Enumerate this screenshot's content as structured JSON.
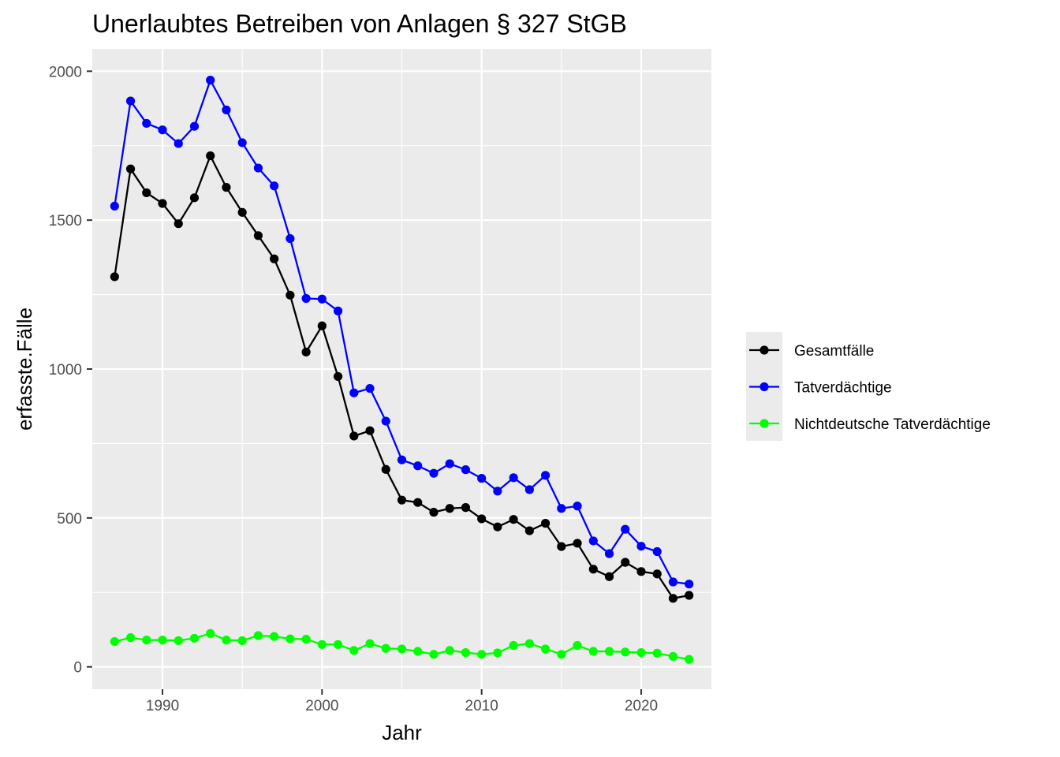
{
  "chart_data": {
    "type": "line",
    "title": "Unerlaubtes Betreiben von Anlagen § 327 StGB",
    "xlabel": "Jahr",
    "ylabel": "erfasste.Fälle",
    "xlim": [
      1985.6,
      2024.4
    ],
    "ylim": [
      -75,
      2075
    ],
    "xticks": [
      1990,
      2000,
      2010,
      2020
    ],
    "yticks": [
      0,
      500,
      1000,
      1500,
      2000
    ],
    "grid": true,
    "legend_position": "right",
    "x": [
      1987,
      1988,
      1989,
      1990,
      1991,
      1992,
      1993,
      1994,
      1995,
      1996,
      1997,
      1998,
      1999,
      2000,
      2001,
      2002,
      2003,
      2004,
      2005,
      2006,
      2007,
      2008,
      2009,
      2010,
      2011,
      2012,
      2013,
      2014,
      2015,
      2016,
      2017,
      2018,
      2019,
      2020,
      2021,
      2022,
      2023
    ],
    "series": [
      {
        "name": "Gesamtfälle",
        "color": "#000000",
        "values": [
          1310,
          1672,
          1592,
          1556,
          1488,
          1575,
          1716,
          1610,
          1526,
          1448,
          1370,
          1248,
          1057,
          1145,
          975,
          775,
          793,
          663,
          560,
          552,
          519,
          532,
          535,
          497,
          470,
          495,
          457,
          482,
          404,
          415,
          328,
          303,
          351,
          320,
          312,
          230,
          240
        ]
      },
      {
        "name": "Tatverdächtige",
        "color": "#0000ff",
        "values": [
          1547,
          1900,
          1825,
          1803,
          1757,
          1815,
          1970,
          1870,
          1760,
          1675,
          1615,
          1438,
          1237,
          1235,
          1195,
          920,
          935,
          825,
          695,
          675,
          650,
          682,
          662,
          633,
          590,
          635,
          595,
          643,
          532,
          540,
          423,
          380,
          462,
          405,
          387,
          285,
          278
        ]
      },
      {
        "name": "Nichtdeutsche Tatverdächtige",
        "color": "#00ff00",
        "values": [
          85,
          98,
          90,
          90,
          88,
          96,
          112,
          90,
          88,
          105,
          102,
          94,
          93,
          75,
          75,
          55,
          78,
          62,
          60,
          52,
          42,
          55,
          48,
          42,
          47,
          72,
          78,
          60,
          42,
          72,
          52,
          52,
          50,
          48,
          46,
          35,
          25
        ]
      }
    ]
  }
}
